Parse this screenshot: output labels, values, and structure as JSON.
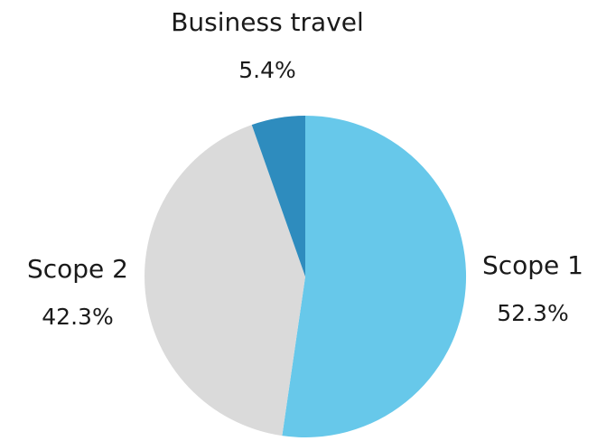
{
  "chart_data": {
    "type": "pie",
    "title": "",
    "slices": [
      {
        "label": "Scope 1",
        "value": 52.3,
        "value_label": "52.3%",
        "color": "#67C8EA"
      },
      {
        "label": "Scope 2",
        "value": 42.3,
        "value_label": "42.3%",
        "color": "#DADADA"
      },
      {
        "label": "Business travel",
        "value": 5.4,
        "value_label": "5.4%",
        "color": "#2E8CBE"
      }
    ],
    "start_angle": "12 o'clock",
    "direction": "clockwise",
    "legend": "none",
    "label_placement": "outside"
  }
}
